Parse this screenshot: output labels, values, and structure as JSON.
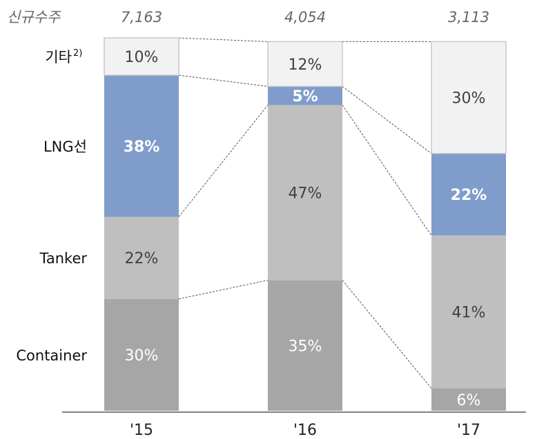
{
  "chart_data": {
    "type": "bar",
    "stacked": true,
    "normalized": true,
    "title": "",
    "header_label": "신규수주",
    "categories": [
      "'15",
      "'16",
      "'17"
    ],
    "totals": [
      "7,163",
      "4,054",
      "3,113"
    ],
    "series": [
      {
        "name": "Container",
        "values": [
          30,
          35,
          6
        ],
        "labels": [
          "30%",
          "35%",
          "6%"
        ],
        "color": "#a6a6a6",
        "text_color": "#ffffff",
        "bold": false
      },
      {
        "name": "Tanker",
        "values": [
          22,
          47,
          41
        ],
        "labels": [
          "22%",
          "47%",
          "41%"
        ],
        "color": "#bfbfbf",
        "text_color": "#404040",
        "bold": false
      },
      {
        "name": "LNG선",
        "values": [
          38,
          5,
          22
        ],
        "labels": [
          "38%",
          "5%",
          "22%"
        ],
        "color": "#7f9ccb",
        "text_color": "#ffffff",
        "bold": true,
        "legend_color": "#1f4e9c"
      },
      {
        "name": "기타",
        "name_sup": "2)",
        "values": [
          10,
          12,
          30
        ],
        "labels": [
          "10%",
          "12%",
          "30%"
        ],
        "color": "#f2f2f2",
        "text_color": "#404040",
        "bold": false
      }
    ],
    "ylim": [
      0,
      100
    ],
    "grid": false,
    "legend": "left"
  }
}
